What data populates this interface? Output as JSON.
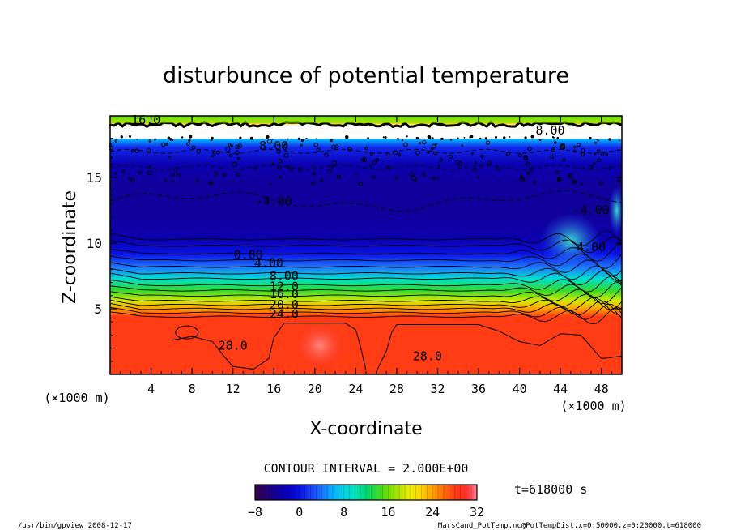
{
  "chart_data": {
    "type": "heatmap",
    "title": "disturbunce of potential temperature",
    "xlabel": "X-coordinate",
    "ylabel": "Z-coordinate",
    "x_unit": "(×1000 m)",
    "y_unit": "(×1000 m)",
    "xlim": [
      0,
      50
    ],
    "ylim": [
      0,
      19.7
    ],
    "x_ticks": [
      4,
      8,
      12,
      16,
      20,
      24,
      28,
      32,
      36,
      40,
      44,
      48
    ],
    "y_ticks": [
      5,
      10,
      15
    ],
    "contour_interval_label": "CONTOUR INTERVAL = 2.000E+00",
    "time_label": "t=618000 s",
    "colorbar": {
      "range": [
        -8,
        32
      ],
      "ticks": [
        -8,
        0,
        8,
        16,
        24,
        32
      ]
    },
    "contour_labels": [
      {
        "text": "16.0",
        "x": 3.5,
        "z": 19.4
      },
      {
        "text": "8.00",
        "x": 16,
        "z": 17.4
      },
      {
        "text": "8.00",
        "x": 43,
        "z": 18.6
      },
      {
        "text": "-4.00",
        "x": 16,
        "z": 13.2
      },
      {
        "text": "-4.00",
        "x": 47,
        "z": 12.5
      },
      {
        "text": "0.00",
        "x": 13.5,
        "z": 9.1
      },
      {
        "text": "4.00",
        "x": 15.5,
        "z": 8.5
      },
      {
        "text": "4.00",
        "x": 47,
        "z": 9.7
      },
      {
        "text": "8.00",
        "x": 17,
        "z": 7.5
      },
      {
        "text": "12.0",
        "x": 17,
        "z": 6.7
      },
      {
        "text": "16.0",
        "x": 17,
        "z": 6.1
      },
      {
        "text": "20.0",
        "x": 17,
        "z": 5.3
      },
      {
        "text": "24.0",
        "x": 17,
        "z": 4.6
      },
      {
        "text": "28.0",
        "x": 12,
        "z": 2.2
      },
      {
        "text": "28.0",
        "x": 31,
        "z": 1.4
      }
    ],
    "profile": [
      {
        "z": 0.0,
        "value": 28
      },
      {
        "z": 4.4,
        "value": 28
      },
      {
        "z": 5.0,
        "value": 24
      },
      {
        "z": 5.6,
        "value": 19
      },
      {
        "z": 6.4,
        "value": 14
      },
      {
        "z": 7.3,
        "value": 9
      },
      {
        "z": 8.2,
        "value": 4
      },
      {
        "z": 9.2,
        "value": 0
      },
      {
        "z": 10.3,
        "value": -3
      },
      {
        "z": 12.0,
        "value": -4
      },
      {
        "z": 14.5,
        "value": -4
      },
      {
        "z": 16.0,
        "value": -3
      },
      {
        "z": 17.3,
        "value": 1
      },
      {
        "z": 17.9,
        "value": 6
      },
      {
        "z": 18.0,
        "value": null
      },
      {
        "z": 19.0,
        "value": null
      },
      {
        "z": 19.1,
        "value": 22
      },
      {
        "z": 19.3,
        "value": 18
      },
      {
        "z": 19.7,
        "value": 14
      }
    ]
  },
  "footer": {
    "left": "/usr/bin/gpview  2008-12-17",
    "right": "MarsCand_PotTemp.nc@PotTempDist,x=0:50000,z=0:20000,t=618000"
  }
}
